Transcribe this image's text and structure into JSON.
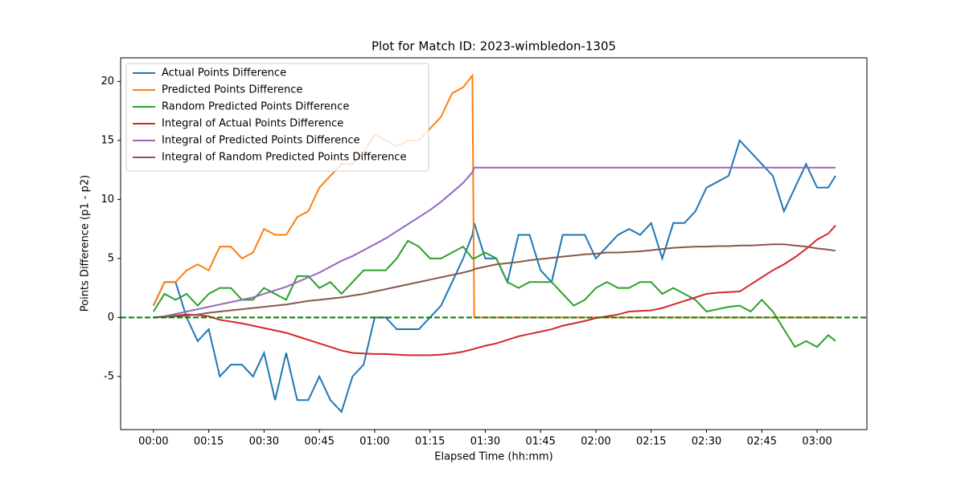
{
  "chart_data": {
    "type": "line",
    "title": "Plot for Match ID: 2023-wimbledon-1305",
    "x_label": "Elapsed Time (hh:mm)",
    "y_label": "Points Difference (p1 - p2)",
    "x": [
      0,
      3,
      6,
      9,
      12,
      15,
      18,
      21,
      24,
      27,
      30,
      33,
      36,
      39,
      42,
      45,
      48,
      51,
      54,
      57,
      60,
      63,
      66,
      69,
      72,
      75,
      78,
      81,
      84,
      86.5,
      87,
      90,
      93,
      96,
      99,
      102,
      105,
      108,
      111,
      114,
      117,
      120,
      123,
      126,
      129,
      132,
      135,
      138,
      141,
      144,
      147,
      150,
      153,
      156,
      159,
      162,
      165,
      168,
      171,
      174,
      177,
      180,
      183,
      185
    ],
    "series": [
      {
        "name": "Actual Points Difference",
        "color": "#1f77b4",
        "values": [
          1,
          3,
          3,
          0,
          -2,
          -1,
          -5,
          -4,
          -4,
          -5,
          -3,
          -7,
          -3,
          -7,
          -7,
          -5,
          -7,
          -8,
          -5,
          -4,
          0,
          0,
          -1,
          -1,
          -1,
          0,
          1,
          3,
          5,
          7,
          8,
          5,
          5,
          3,
          7,
          7,
          4,
          3,
          7,
          7,
          7,
          5,
          6,
          7,
          7.5,
          7,
          8,
          5,
          8,
          8,
          9,
          11,
          11.5,
          12,
          15,
          14,
          13,
          12,
          9,
          11,
          13,
          11,
          11,
          12
        ]
      },
      {
        "name": "Predicted Points Difference",
        "color": "#ff7f0e",
        "values": [
          1,
          3,
          3,
          4,
          4.5,
          4,
          6,
          6,
          5,
          5.5,
          7.5,
          7,
          7,
          8.5,
          9,
          11,
          12,
          13,
          13,
          14,
          15.5,
          15,
          14.5,
          15,
          15,
          16,
          17,
          19,
          19.5,
          20.5,
          0,
          0,
          0,
          0,
          0,
          0,
          0,
          0,
          0,
          0,
          0,
          0,
          0,
          0,
          0,
          0,
          0,
          0,
          0,
          0,
          0,
          0,
          0,
          0,
          0,
          0,
          0,
          0,
          0,
          0,
          0,
          0,
          0,
          0
        ]
      },
      {
        "name": "Random Predicted Points Difference",
        "color": "#2ca02c",
        "values": [
          0.5,
          2,
          1.5,
          2,
          1,
          2,
          2.5,
          2.5,
          1.5,
          1.5,
          2.5,
          2,
          1.5,
          3.5,
          3.5,
          2.5,
          3,
          2,
          3,
          4,
          4,
          4,
          5,
          6.5,
          6,
          5,
          5,
          5.5,
          6,
          5,
          5,
          5.5,
          5,
          3,
          2.5,
          3,
          3,
          3,
          2,
          1,
          1.5,
          2.5,
          3,
          2.5,
          2.5,
          3,
          3,
          2,
          2.5,
          2,
          1.5,
          0.5,
          0.7,
          0.9,
          1,
          0.5,
          1.5,
          0.5,
          -1,
          -2.5,
          -2,
          -2.5,
          -1.5,
          -2
        ]
      },
      {
        "name": "Integral of Actual Points Difference",
        "color": "#d62728",
        "values": [
          0,
          0.05,
          0.15,
          0.25,
          0.2,
          0.1,
          -0.2,
          -0.35,
          -0.5,
          -0.7,
          -0.9,
          -1.1,
          -1.3,
          -1.6,
          -1.9,
          -2.2,
          -2.5,
          -2.8,
          -3,
          -3.05,
          -3.1,
          -3.1,
          -3.15,
          -3.2,
          -3.2,
          -3.2,
          -3.15,
          -3.05,
          -2.9,
          -2.7,
          -2.65,
          -2.4,
          -2.2,
          -1.9,
          -1.6,
          -1.4,
          -1.2,
          -1,
          -0.7,
          -0.5,
          -0.3,
          -0.05,
          0.1,
          0.25,
          0.5,
          0.55,
          0.6,
          0.8,
          1.1,
          1.4,
          1.7,
          2,
          2.1,
          2.15,
          2.2,
          2.8,
          3.4,
          4,
          4.5,
          5.1,
          5.8,
          6.6,
          7.1,
          7.8
        ]
      },
      {
        "name": "Integral of Predicted Points Difference",
        "color": "#9467bd",
        "values": [
          0,
          0.1,
          0.3,
          0.5,
          0.7,
          0.9,
          1.1,
          1.3,
          1.5,
          1.7,
          2,
          2.3,
          2.6,
          3,
          3.4,
          3.8,
          4.3,
          4.8,
          5.2,
          5.7,
          6.2,
          6.7,
          7.3,
          7.9,
          8.5,
          9.1,
          9.8,
          10.6,
          11.4,
          12.3,
          12.7,
          12.7,
          12.7,
          12.7,
          12.7,
          12.7,
          12.7,
          12.7,
          12.7,
          12.7,
          12.7,
          12.7,
          12.7,
          12.7,
          12.7,
          12.7,
          12.7,
          12.7,
          12.7,
          12.7,
          12.7,
          12.7,
          12.7,
          12.7,
          12.7,
          12.7,
          12.7,
          12.7,
          12.7,
          12.7,
          12.7,
          12.7,
          12.7,
          12.7
        ]
      },
      {
        "name": "Integral of Random Predicted Points Difference",
        "color": "#8c564b",
        "values": [
          0,
          0.05,
          0.1,
          0.15,
          0.25,
          0.4,
          0.5,
          0.6,
          0.7,
          0.8,
          0.9,
          1,
          1.1,
          1.25,
          1.4,
          1.5,
          1.6,
          1.7,
          1.85,
          2,
          2.2,
          2.4,
          2.6,
          2.8,
          3,
          3.2,
          3.4,
          3.6,
          3.8,
          4,
          4.1,
          4.3,
          4.5,
          4.6,
          4.7,
          4.85,
          4.95,
          5.05,
          5.15,
          5.25,
          5.35,
          5.4,
          5.5,
          5.5,
          5.55,
          5.6,
          5.7,
          5.8,
          5.9,
          5.95,
          6,
          6,
          6.05,
          6.05,
          6.1,
          6.1,
          6.15,
          6.2,
          6.2,
          6.1,
          6,
          5.85,
          5.75,
          5.65
        ]
      }
    ],
    "xlim": [
      -8.9,
      193.5
    ],
    "ylim": [
      -9.5,
      22
    ],
    "xticks": [
      {
        "value": 0,
        "label": "00:00"
      },
      {
        "value": 15,
        "label": "00:15"
      },
      {
        "value": 30,
        "label": "00:30"
      },
      {
        "value": 45,
        "label": "00:45"
      },
      {
        "value": 60,
        "label": "01:00"
      },
      {
        "value": 75,
        "label": "01:15"
      },
      {
        "value": 90,
        "label": "01:30"
      },
      {
        "value": 105,
        "label": "01:45"
      },
      {
        "value": 120,
        "label": "02:00"
      },
      {
        "value": 135,
        "label": "02:15"
      },
      {
        "value": 150,
        "label": "02:30"
      },
      {
        "value": 165,
        "label": "02:45"
      },
      {
        "value": 180,
        "label": "03:00"
      }
    ],
    "yticks": [
      -5,
      0,
      5,
      10,
      15,
      20
    ],
    "hline": {
      "y": 0,
      "color": "green",
      "style": "dashed"
    },
    "legend": "upper left",
    "grid": false
  }
}
